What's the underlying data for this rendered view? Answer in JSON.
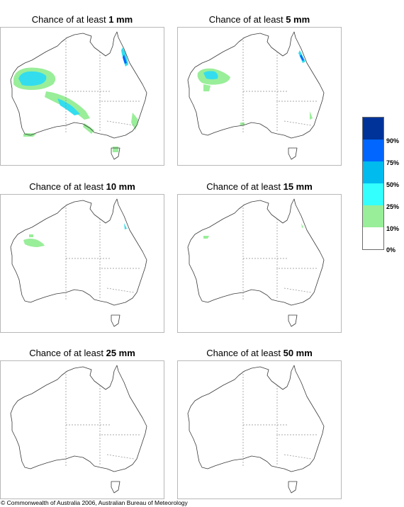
{
  "panels": [
    {
      "id": "1mm",
      "title_prefix": "Chance of at least",
      "amount": "1 mm"
    },
    {
      "id": "5mm",
      "title_prefix": "Chance of at least",
      "amount": "5 mm"
    },
    {
      "id": "10mm",
      "title_prefix": "Chance of at least",
      "amount": "10 mm"
    },
    {
      "id": "15mm",
      "title_prefix": "Chance of at least",
      "amount": "15 mm"
    },
    {
      "id": "25mm",
      "title_prefix": "Chance of at least",
      "amount": "25 mm"
    },
    {
      "id": "50mm",
      "title_prefix": "Chance of at least",
      "amount": "50 mm"
    }
  ],
  "legend": {
    "labels": [
      "90%",
      "75%",
      "50%",
      "25%",
      "10%",
      "0%"
    ],
    "colors": [
      "#003399",
      "#0066ff",
      "#00bbee",
      "#33ffff",
      "#99ee99",
      "#ffffff"
    ]
  },
  "copyright": "© Commonwealth of Australia 2006, Australian Bureau of Meteorology"
}
